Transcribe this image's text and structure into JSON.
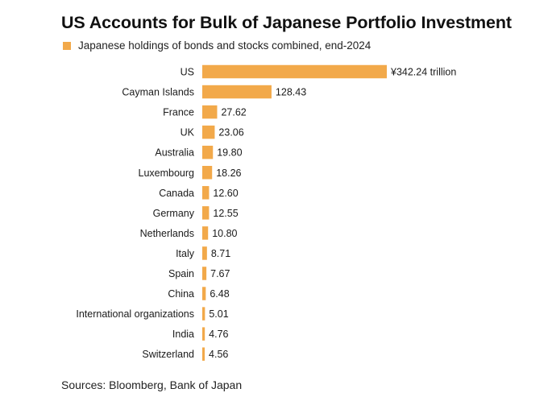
{
  "title": "US Accounts for Bulk of Japanese Portfolio Investment",
  "source": "Sources: Bloomberg, Bank of Japan",
  "colors": {
    "bar": "#F2A94A"
  },
  "chart_data": {
    "type": "bar",
    "orientation": "horizontal",
    "title": "US Accounts for Bulk of Japanese Portfolio Investment",
    "series": [
      {
        "name": "Japanese holdings of bonds and stocks combined, end-2024",
        "values": [
          342.24,
          128.43,
          27.62,
          23.06,
          19.8,
          18.26,
          12.6,
          12.55,
          10.8,
          8.71,
          7.67,
          6.48,
          5.01,
          4.76,
          4.56
        ]
      }
    ],
    "categories": [
      "US",
      "Cayman Islands",
      "France",
      "UK",
      "Australia",
      "Luxembourg",
      "Canada",
      "Germany",
      "Netherlands",
      "Italy",
      "Spain",
      "China",
      "International organizations",
      "India",
      "Switzerland"
    ],
    "value_labels": [
      "¥342.24 trillion",
      "128.43",
      "27.62",
      "23.06",
      "19.80",
      "18.26",
      "12.60",
      "12.55",
      "10.80",
      "8.71",
      "7.67",
      "6.48",
      "5.01",
      "4.76",
      "4.56"
    ],
    "xlim": [
      0,
      342.24
    ],
    "grid": false,
    "legend_position": "top-left"
  }
}
